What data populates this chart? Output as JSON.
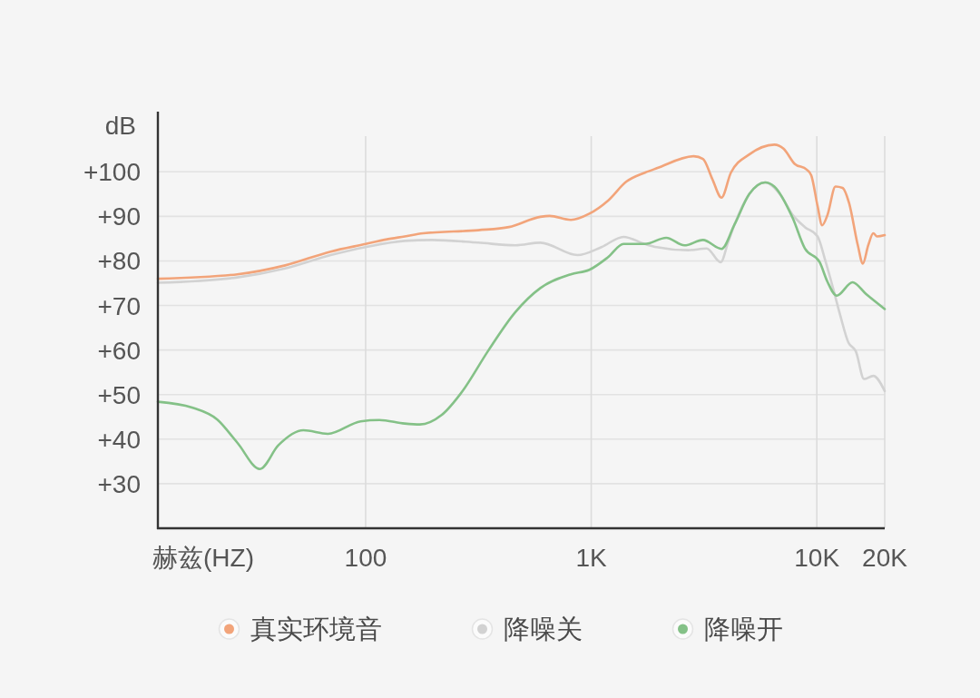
{
  "chart_data": {
    "type": "line",
    "ylabel": "dB",
    "xlabel": "赫兹(HZ)",
    "log": "x",
    "xlim": [
      12,
      20000
    ],
    "xticks": [
      100,
      {
        "value": 1000,
        "label": "1K"
      },
      {
        "value": 10000,
        "label": "10K"
      },
      {
        "value": 20000,
        "label": "20K"
      }
    ],
    "ylim": [
      20,
      108
    ],
    "yticks": [
      {
        "value": 30,
        "label": "+30"
      },
      {
        "value": 40,
        "label": "+40"
      },
      {
        "value": 50,
        "label": "+50"
      },
      {
        "value": 60,
        "label": "+60"
      },
      {
        "value": 70,
        "label": "+70"
      },
      {
        "value": 80,
        "label": "+80"
      },
      {
        "value": 90,
        "label": "+90"
      },
      {
        "value": 100,
        "label": "+100"
      }
    ],
    "grid": true,
    "legend": "bottom",
    "series": [
      {
        "name": "真实环境音",
        "color": "#f2a47a",
        "x": [
          12,
          27,
          44,
          70,
          100,
          123,
          149,
          180,
          316,
          432,
          595,
          654,
          812,
          981,
          1185,
          1432,
          1729,
          1954,
          2850,
          3130,
          3440,
          3780,
          4160,
          5020,
          6480,
          7120,
          7970,
          9020,
          9450,
          10080,
          10560,
          11150,
          12100,
          13000,
          13900,
          15200,
          16000,
          16900,
          17800,
          18500,
          20000
        ],
        "values": [
          76.0,
          77.0,
          79.0,
          82.1,
          83.8,
          84.8,
          85.5,
          86.2,
          86.9,
          87.6,
          89.9,
          90.1,
          89.2,
          90.6,
          93.5,
          97.8,
          99.8,
          100.8,
          103.5,
          102.9,
          98.4,
          94.2,
          99.8,
          103.9,
          106.1,
          105.2,
          101.8,
          100.5,
          99.2,
          92.3,
          88.0,
          90.3,
          96.7,
          96.4,
          93.0,
          83.5,
          79.4,
          83.5,
          86.2,
          85.5,
          85.8
        ]
      },
      {
        "name": "降噪关",
        "color": "#d2d2d2",
        "x": [
          12,
          27,
          44,
          70,
          100,
          149,
          197,
          316,
          461,
          595,
          868,
          1110,
          1390,
          1730,
          1950,
          2690,
          3250,
          3750,
          4040,
          4320,
          5020,
          5900,
          6920,
          7820,
          8850,
          10080,
          10900,
          11800,
          12700,
          13800,
          14900,
          16200,
          17800,
          20000
        ],
        "values": [
          75.1,
          76.3,
          78.3,
          81.3,
          83.1,
          84.5,
          84.7,
          84.1,
          83.5,
          84.1,
          81.3,
          83.1,
          85.4,
          83.8,
          83.1,
          82.4,
          82.8,
          79.7,
          84.1,
          88.2,
          95.0,
          97.6,
          94.7,
          90.3,
          87.6,
          85.5,
          80.1,
          73.9,
          67.8,
          61.7,
          59.7,
          53.5,
          54.2,
          50.8
        ]
      },
      {
        "name": "降噪开",
        "color": "#84c187",
        "x": [
          12,
          17,
          22,
          27,
          34,
          41,
          53,
          68,
          95,
          115,
          149,
          174,
          217,
          269,
          348,
          461,
          595,
          812,
          981,
          1185,
          1391,
          1730,
          2150,
          2590,
          3130,
          3780,
          4320,
          5020,
          5900,
          6480,
          7820,
          8850,
          10300,
          11150,
          12250,
          14400,
          16500,
          20000
        ],
        "values": [
          48.4,
          47.1,
          44.4,
          39.2,
          33.3,
          38.6,
          42.0,
          41.2,
          44.0,
          44.3,
          43.5,
          43.3,
          45.4,
          50.8,
          59.7,
          68.5,
          73.9,
          77.0,
          78.0,
          80.8,
          83.8,
          83.8,
          85.2,
          83.5,
          84.7,
          82.7,
          88.2,
          95.0,
          97.6,
          96.7,
          89.6,
          82.8,
          79.7,
          75.3,
          72.2,
          75.2,
          72.6,
          69.2
        ]
      }
    ]
  }
}
